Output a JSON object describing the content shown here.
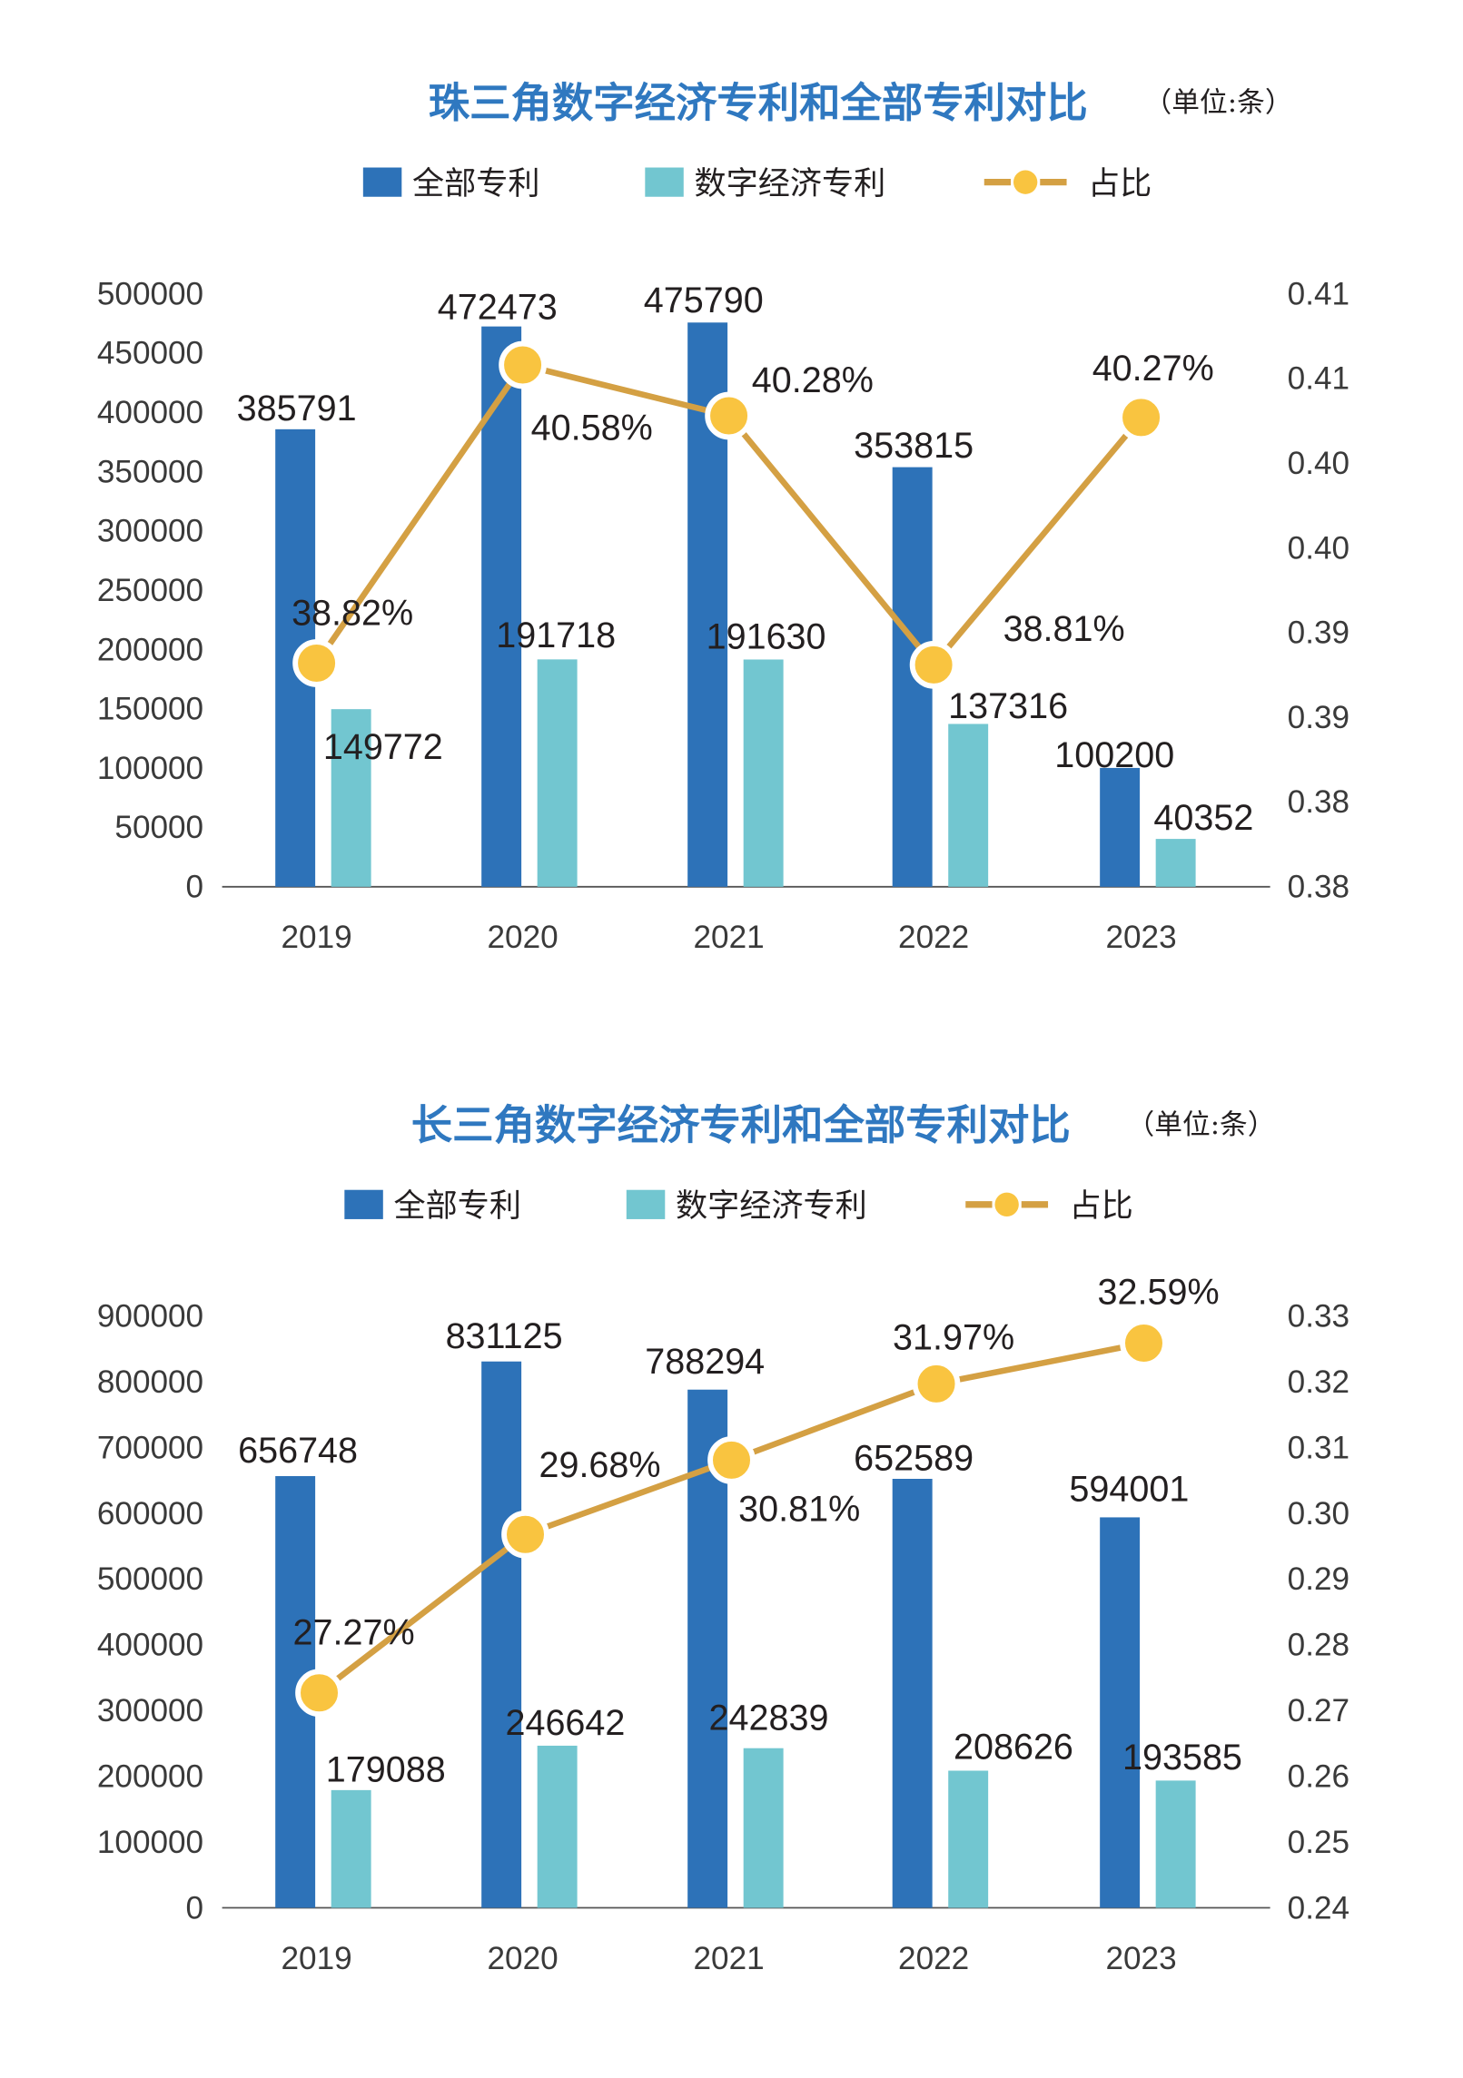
{
  "colors": {
    "total": "#2d72b8",
    "digital": "#72c6d0",
    "ratio_line": "#d4a043",
    "ratio_dot": "#f9c440",
    "title": "#2f78c0"
  },
  "chart_data": [
    {
      "type": "bar+line",
      "title": "珠三角数字经济专利和全部专利对比",
      "unit": "（单位:条）",
      "legend": [
        "全部专利",
        "数字经济专利",
        "占比"
      ],
      "legend_placement": "top",
      "categories": [
        "2019",
        "2020",
        "2021",
        "2022",
        "2023"
      ],
      "series": [
        {
          "name": "全部专利",
          "type": "bar",
          "axis": "left",
          "values": [
            385791,
            472473,
            475790,
            353815,
            100200
          ]
        },
        {
          "name": "数字经济专利",
          "type": "bar",
          "axis": "left",
          "values": [
            149772,
            191718,
            191630,
            137316,
            40352
          ]
        },
        {
          "name": "占比",
          "type": "line",
          "axis": "right",
          "values": [
            0.3882,
            0.4058,
            0.4028,
            0.3881,
            0.4027
          ],
          "labels": [
            "38.82%",
            "40.58%",
            "40.28%",
            "38.81%",
            "40.27%"
          ]
        }
      ],
      "y_left": {
        "range": [
          0,
          500000
        ],
        "ticks": [
          "0",
          "50000",
          "100000",
          "150000",
          "200000",
          "250000",
          "300000",
          "350000",
          "400000",
          "450000",
          "500000"
        ]
      },
      "y_right": {
        "range": [
          0.375,
          0.41
        ],
        "ticks": [
          "0.38",
          "0.38",
          "0.39",
          "0.39",
          "0.40",
          "0.40",
          "0.41",
          "0.41"
        ]
      },
      "grid": false
    },
    {
      "type": "bar+line",
      "title": "长三角数字经济专利和全部专利对比",
      "unit": "（单位:条）",
      "legend": [
        "全部专利",
        "数字经济专利",
        "占比"
      ],
      "legend_placement": "top",
      "categories": [
        "2019",
        "2020",
        "2021",
        "2022",
        "2023"
      ],
      "series": [
        {
          "name": "全部专利",
          "type": "bar",
          "axis": "left",
          "values": [
            656748,
            831125,
            788294,
            652589,
            594001
          ]
        },
        {
          "name": "数字经济专利",
          "type": "bar",
          "axis": "left",
          "values": [
            179088,
            246642,
            242839,
            208626,
            193585
          ]
        },
        {
          "name": "占比",
          "type": "line",
          "axis": "right",
          "values": [
            0.2727,
            0.2968,
            0.3081,
            0.3197,
            0.3259
          ],
          "labels": [
            "27.27%",
            "29.68%",
            "30.81%",
            "31.97%",
            "32.59%"
          ]
        }
      ],
      "y_left": {
        "range": [
          0,
          900000
        ],
        "ticks": [
          "0",
          "100000",
          "200000",
          "300000",
          "400000",
          "500000",
          "600000",
          "700000",
          "800000",
          "900000"
        ]
      },
      "y_right": {
        "range": [
          0.24,
          0.33
        ],
        "ticks": [
          "0.24",
          "0.25",
          "0.26",
          "0.27",
          "0.28",
          "0.29",
          "0.30",
          "0.31",
          "0.32",
          "0.33"
        ]
      },
      "grid": false
    }
  ]
}
